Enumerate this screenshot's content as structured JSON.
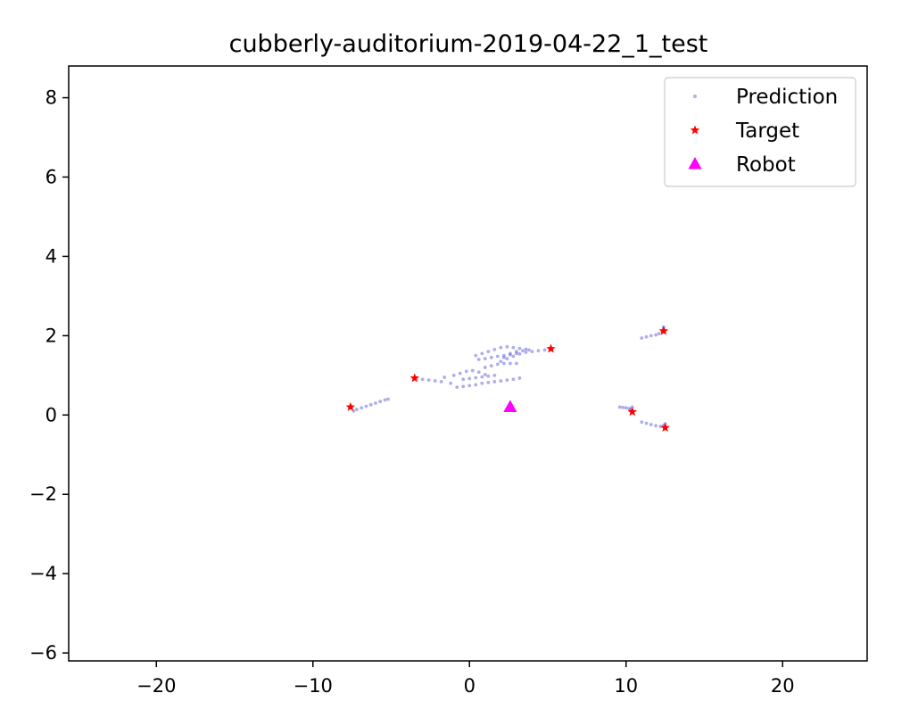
{
  "chart_data": {
    "type": "scatter",
    "title": "cubberly-auditorium-2019-04-22_1_test",
    "xlabel": "",
    "ylabel": "",
    "xlim": [
      -25.6,
      25.4
    ],
    "ylim": [
      -6.2,
      8.8
    ],
    "xticks": [
      -20,
      -10,
      0,
      10,
      20
    ],
    "yticks": [
      -6,
      -4,
      -2,
      0,
      2,
      4,
      6,
      8
    ],
    "xtick_labels": [
      "−20",
      "−10",
      "0",
      "10",
      "20"
    ],
    "ytick_labels": [
      "−6",
      "−4",
      "−2",
      "0",
      "2",
      "4",
      "6",
      "8"
    ],
    "grid": false,
    "legend_position": "top-right",
    "colors": {
      "prediction": "#6b6bdc",
      "target": "#ff0000",
      "robot": "#ff00ff"
    },
    "series": [
      {
        "name": "Prediction",
        "marker": "dot",
        "color": "#6b6bdc",
        "points": [
          [
            -7.4,
            0.1
          ],
          [
            -7.2,
            0.14
          ],
          [
            -6.9,
            0.18
          ],
          [
            -6.6,
            0.22
          ],
          [
            -6.3,
            0.26
          ],
          [
            -6.0,
            0.3
          ],
          [
            -5.7,
            0.34
          ],
          [
            -5.4,
            0.38
          ],
          [
            -5.2,
            0.4
          ],
          [
            -3.0,
            0.9
          ],
          [
            -2.6,
            0.88
          ],
          [
            -2.2,
            0.86
          ],
          [
            -1.8,
            0.84
          ],
          [
            -1.6,
            0.95
          ],
          [
            -1.2,
            0.8
          ],
          [
            -0.8,
            0.7
          ],
          [
            -0.4,
            0.72
          ],
          [
            0.0,
            0.74
          ],
          [
            0.4,
            0.76
          ],
          [
            -1.0,
            1.0
          ],
          [
            -0.6,
            1.05
          ],
          [
            -0.2,
            1.1
          ],
          [
            0.2,
            1.12
          ],
          [
            0.6,
            1.08
          ],
          [
            1.0,
            1.02
          ],
          [
            -0.4,
            0.9
          ],
          [
            0.0,
            0.92
          ],
          [
            0.4,
            0.94
          ],
          [
            0.8,
            0.96
          ],
          [
            1.2,
            0.98
          ],
          [
            1.6,
            1.0
          ],
          [
            0.8,
            0.8
          ],
          [
            1.2,
            0.82
          ],
          [
            1.6,
            0.84
          ],
          [
            2.0,
            0.86
          ],
          [
            2.4,
            0.88
          ],
          [
            2.8,
            0.9
          ],
          [
            3.2,
            0.93
          ],
          [
            1.0,
            1.2
          ],
          [
            1.4,
            1.24
          ],
          [
            1.8,
            1.28
          ],
          [
            2.2,
            1.3
          ],
          [
            2.6,
            1.3
          ],
          [
            3.0,
            1.3
          ],
          [
            0.4,
            1.5
          ],
          [
            0.8,
            1.55
          ],
          [
            1.2,
            1.6
          ],
          [
            1.6,
            1.65
          ],
          [
            2.0,
            1.7
          ],
          [
            2.4,
            1.72
          ],
          [
            2.8,
            1.7
          ],
          [
            3.2,
            1.68
          ],
          [
            3.6,
            1.66
          ],
          [
            0.6,
            1.4
          ],
          [
            1.0,
            1.42
          ],
          [
            1.4,
            1.45
          ],
          [
            1.8,
            1.48
          ],
          [
            2.2,
            1.5
          ],
          [
            2.6,
            1.52
          ],
          [
            3.0,
            1.55
          ],
          [
            2.0,
            1.35
          ],
          [
            2.4,
            1.42
          ],
          [
            2.8,
            1.48
          ],
          [
            3.2,
            1.54
          ],
          [
            3.6,
            1.58
          ],
          [
            4.0,
            1.6
          ],
          [
            4.4,
            1.62
          ],
          [
            4.8,
            1.64
          ],
          [
            2.2,
            1.45
          ],
          [
            2.6,
            1.55
          ],
          [
            3.0,
            1.6
          ],
          [
            3.4,
            1.62
          ],
          [
            3.8,
            1.64
          ],
          [
            11.0,
            1.94
          ],
          [
            11.3,
            1.97
          ],
          [
            11.6,
            2.0
          ],
          [
            11.9,
            2.02
          ],
          [
            12.1,
            2.05
          ],
          [
            12.3,
            2.1
          ],
          [
            12.4,
            2.18
          ],
          [
            12.4,
            2.22
          ],
          [
            9.6,
            0.2
          ],
          [
            9.8,
            0.19
          ],
          [
            10.0,
            0.18
          ],
          [
            10.2,
            0.16
          ],
          [
            10.3,
            0.14
          ],
          [
            10.4,
            0.2
          ],
          [
            11.0,
            -0.18
          ],
          [
            11.3,
            -0.21
          ],
          [
            11.6,
            -0.24
          ],
          [
            11.9,
            -0.27
          ],
          [
            12.2,
            -0.29
          ],
          [
            12.4,
            -0.26
          ],
          [
            12.5,
            -0.22
          ]
        ]
      },
      {
        "name": "Target",
        "marker": "star",
        "color": "#ff0000",
        "points": [
          [
            -7.6,
            0.2
          ],
          [
            -3.5,
            0.93
          ],
          [
            5.2,
            1.67
          ],
          [
            12.4,
            2.12
          ],
          [
            10.4,
            0.08
          ],
          [
            12.5,
            -0.32
          ]
        ]
      },
      {
        "name": "Robot",
        "marker": "triangle",
        "color": "#ff00ff",
        "points": [
          [
            2.6,
            0.2
          ]
        ]
      }
    ]
  }
}
